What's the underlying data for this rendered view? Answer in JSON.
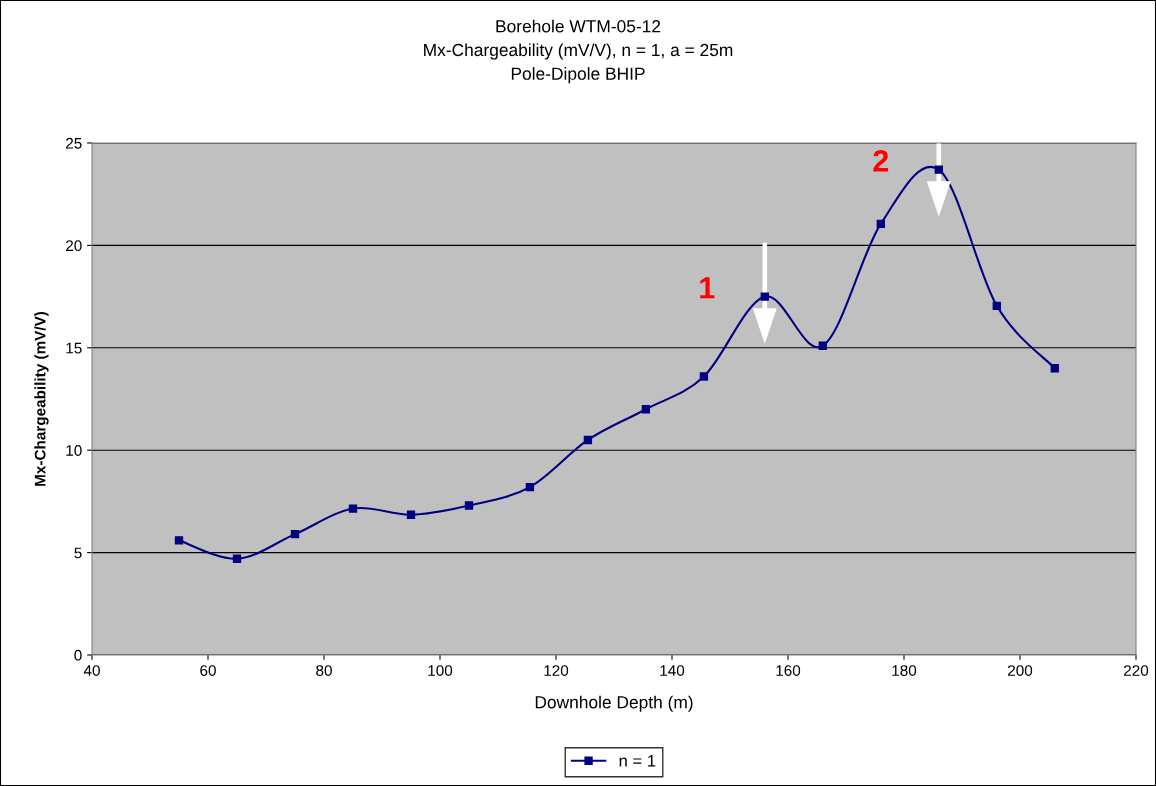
{
  "chart_data": {
    "type": "line",
    "title": "Borehole WTM-05-12\nMx-Chargeability (mV/V), n = 1, a = 25m\nPole-Dipole BHIP",
    "xlabel": "Downhole Depth (m)",
    "ylabel": "Mx-Chargeability (mV/V)",
    "x": [
      55,
      65,
      75,
      85,
      95,
      105,
      115.5,
      125.5,
      135.5,
      145.5,
      156,
      166,
      176,
      186,
      196,
      206
    ],
    "series": [
      {
        "name": "n = 1",
        "color": "#000080",
        "values": [
          5.6,
          4.7,
          5.9,
          7.15,
          6.85,
          7.3,
          8.2,
          10.5,
          12.0,
          13.6,
          17.5,
          15.1,
          21.05,
          23.7,
          17.05,
          14.0
        ]
      }
    ],
    "xlim": [
      40,
      220
    ],
    "xticks": [
      40,
      60,
      80,
      100,
      120,
      140,
      160,
      180,
      200,
      220
    ],
    "ylim": [
      0,
      25
    ],
    "yticks": [
      0,
      5,
      10,
      15,
      20,
      25
    ],
    "grid": "y",
    "legend": "bottom",
    "marker": "square",
    "line_style": "solid",
    "annotations": [
      {
        "text": "1",
        "x": 156,
        "y": 17.5
      },
      {
        "text": "2",
        "x": 186,
        "y": 23.7
      }
    ]
  }
}
